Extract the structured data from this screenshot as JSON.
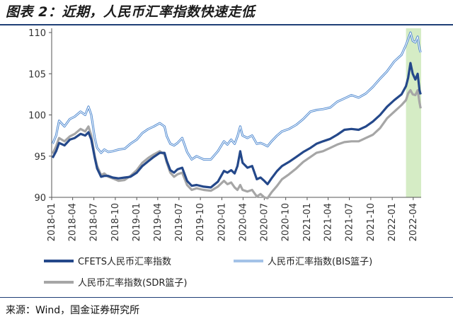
{
  "title": "图表 2：近期，人民币汇率指数快速走低",
  "source": "来源：Wind，国金证券研究所",
  "colors": {
    "cfets": "#24488a",
    "bis": "#7faee0",
    "sdr": "#a6a6a6",
    "highlight": "#d5ecc5",
    "axis": "#555555"
  },
  "chart_data": {
    "type": "line",
    "title": "",
    "xlabel": "",
    "ylabel": "",
    "ylim": [
      90,
      110
    ],
    "yticks": [
      90,
      95,
      100,
      105,
      110
    ],
    "x_range": [
      "2018-01-01",
      "2022-05-05"
    ],
    "xticks": [
      "2018-01",
      "2018-04",
      "2018-07",
      "2018-10",
      "2019-01",
      "2019-04",
      "2019-07",
      "2019-10",
      "2020-01",
      "2020-04",
      "2020-07",
      "2020-10",
      "2021-01",
      "2021-04",
      "2021-07",
      "2021-10",
      "2022-01",
      "2022-04"
    ],
    "highlight_range": [
      "2022-03-01",
      "2022-05-05"
    ],
    "legend_position": "bottom",
    "series": [
      {
        "name": "CFETS人民币汇率指数",
        "key": "cfets",
        "points": [
          [
            "2018-01-05",
            94.8
          ],
          [
            "2018-01-20",
            95.6
          ],
          [
            "2018-02-02",
            96.6
          ],
          [
            "2018-02-25",
            96.3
          ],
          [
            "2018-03-20",
            97.0
          ],
          [
            "2018-04-10",
            97.2
          ],
          [
            "2018-05-05",
            97.7
          ],
          [
            "2018-05-25",
            97.5
          ],
          [
            "2018-06-08",
            97.9
          ],
          [
            "2018-06-20",
            97.0
          ],
          [
            "2018-07-05",
            94.8
          ],
          [
            "2018-07-15",
            93.5
          ],
          [
            "2018-08-01",
            92.5
          ],
          [
            "2018-08-15",
            92.6
          ],
          [
            "2018-09-01",
            92.6
          ],
          [
            "2018-09-20",
            92.4
          ],
          [
            "2018-10-15",
            92.3
          ],
          [
            "2018-11-10",
            92.4
          ],
          [
            "2018-12-05",
            92.5
          ],
          [
            "2019-01-01",
            93.0
          ],
          [
            "2019-01-25",
            93.8
          ],
          [
            "2019-02-20",
            94.4
          ],
          [
            "2019-03-15",
            94.9
          ],
          [
            "2019-04-10",
            95.4
          ],
          [
            "2019-04-30",
            95.4
          ],
          [
            "2019-05-10",
            94.4
          ],
          [
            "2019-05-25",
            93.3
          ],
          [
            "2019-06-10",
            93.0
          ],
          [
            "2019-06-25",
            93.4
          ],
          [
            "2019-07-15",
            93.6
          ],
          [
            "2019-08-05",
            92.0
          ],
          [
            "2019-08-25",
            91.4
          ],
          [
            "2019-09-15",
            91.5
          ],
          [
            "2019-10-15",
            91.3
          ],
          [
            "2019-11-15",
            91.2
          ],
          [
            "2019-12-15",
            91.9
          ],
          [
            "2020-01-10",
            93.2
          ],
          [
            "2020-01-25",
            93.0
          ],
          [
            "2020-02-10",
            93.3
          ],
          [
            "2020-02-25",
            92.9
          ],
          [
            "2020-03-08",
            93.8
          ],
          [
            "2020-03-20",
            95.6
          ],
          [
            "2020-03-30",
            94.2
          ],
          [
            "2020-04-20",
            93.6
          ],
          [
            "2020-05-10",
            93.8
          ],
          [
            "2020-05-30",
            92.2
          ],
          [
            "2020-06-15",
            92.4
          ],
          [
            "2020-07-01",
            92.0
          ],
          [
            "2020-07-15",
            91.6
          ],
          [
            "2020-08-01",
            92.3
          ],
          [
            "2020-08-25",
            93.2
          ],
          [
            "2020-09-15",
            93.8
          ],
          [
            "2020-10-15",
            94.3
          ],
          [
            "2020-11-15",
            94.9
          ],
          [
            "2020-12-15",
            95.5
          ],
          [
            "2021-01-15",
            96.0
          ],
          [
            "2021-02-10",
            96.5
          ],
          [
            "2021-03-10",
            96.8
          ],
          [
            "2021-04-10",
            97.1
          ],
          [
            "2021-05-10",
            97.6
          ],
          [
            "2021-06-10",
            98.2
          ],
          [
            "2021-07-10",
            98.3
          ],
          [
            "2021-08-10",
            98.2
          ],
          [
            "2021-09-10",
            98.6
          ],
          [
            "2021-10-10",
            99.2
          ],
          [
            "2021-11-10",
            100.0
          ],
          [
            "2021-12-10",
            101.0
          ],
          [
            "2022-01-10",
            101.8
          ],
          [
            "2022-02-10",
            102.5
          ],
          [
            "2022-03-01",
            103.5
          ],
          [
            "2022-03-10",
            104.5
          ],
          [
            "2022-03-20",
            106.3
          ],
          [
            "2022-03-30",
            105.0
          ],
          [
            "2022-04-10",
            104.3
          ],
          [
            "2022-04-20",
            105.0
          ],
          [
            "2022-04-28",
            103.0
          ],
          [
            "2022-05-03",
            102.5
          ]
        ]
      },
      {
        "name": "人民币汇率指数(BIS篮子)",
        "key": "bis",
        "points": [
          [
            "2018-01-05",
            96.5
          ],
          [
            "2018-01-20",
            97.5
          ],
          [
            "2018-02-02",
            99.3
          ],
          [
            "2018-02-25",
            98.6
          ],
          [
            "2018-03-20",
            99.5
          ],
          [
            "2018-04-10",
            99.8
          ],
          [
            "2018-05-05",
            100.4
          ],
          [
            "2018-05-25",
            100.0
          ],
          [
            "2018-06-08",
            101.0
          ],
          [
            "2018-06-20",
            100.0
          ],
          [
            "2018-07-05",
            97.2
          ],
          [
            "2018-07-15",
            96.0
          ],
          [
            "2018-08-01",
            95.4
          ],
          [
            "2018-08-15",
            95.8
          ],
          [
            "2018-09-01",
            95.5
          ],
          [
            "2018-09-20",
            95.6
          ],
          [
            "2018-10-15",
            95.8
          ],
          [
            "2018-11-10",
            95.9
          ],
          [
            "2018-12-05",
            96.5
          ],
          [
            "2019-01-01",
            97.0
          ],
          [
            "2019-01-25",
            97.8
          ],
          [
            "2019-02-20",
            98.3
          ],
          [
            "2019-03-15",
            98.6
          ],
          [
            "2019-04-10",
            99.0
          ],
          [
            "2019-04-30",
            98.6
          ],
          [
            "2019-05-10",
            97.4
          ],
          [
            "2019-05-25",
            96.5
          ],
          [
            "2019-06-10",
            96.3
          ],
          [
            "2019-06-25",
            96.6
          ],
          [
            "2019-07-15",
            97.2
          ],
          [
            "2019-08-05",
            95.5
          ],
          [
            "2019-08-25",
            94.6
          ],
          [
            "2019-09-15",
            95.0
          ],
          [
            "2019-10-15",
            94.6
          ],
          [
            "2019-11-15",
            94.6
          ],
          [
            "2019-12-15",
            95.6
          ],
          [
            "2020-01-10",
            96.8
          ],
          [
            "2020-01-25",
            96.4
          ],
          [
            "2020-02-10",
            97.0
          ],
          [
            "2020-02-25",
            96.5
          ],
          [
            "2020-03-08",
            97.4
          ],
          [
            "2020-03-20",
            98.6
          ],
          [
            "2020-03-30",
            97.5
          ],
          [
            "2020-04-20",
            97.2
          ],
          [
            "2020-05-10",
            97.5
          ],
          [
            "2020-05-30",
            96.5
          ],
          [
            "2020-06-15",
            96.6
          ],
          [
            "2020-07-01",
            96.4
          ],
          [
            "2020-07-15",
            96.2
          ],
          [
            "2020-08-01",
            96.8
          ],
          [
            "2020-08-25",
            97.5
          ],
          [
            "2020-09-15",
            98.0
          ],
          [
            "2020-10-15",
            98.3
          ],
          [
            "2020-11-15",
            98.8
          ],
          [
            "2020-12-15",
            99.5
          ],
          [
            "2021-01-15",
            100.4
          ],
          [
            "2021-02-10",
            100.6
          ],
          [
            "2021-03-10",
            100.7
          ],
          [
            "2021-04-10",
            100.9
          ],
          [
            "2021-05-10",
            101.6
          ],
          [
            "2021-06-10",
            102.0
          ],
          [
            "2021-07-10",
            102.4
          ],
          [
            "2021-08-10",
            102.1
          ],
          [
            "2021-09-10",
            102.6
          ],
          [
            "2021-10-10",
            103.4
          ],
          [
            "2021-11-10",
            104.4
          ],
          [
            "2021-12-10",
            105.3
          ],
          [
            "2022-01-10",
            106.5
          ],
          [
            "2022-02-10",
            107.3
          ],
          [
            "2022-03-01",
            108.5
          ],
          [
            "2022-03-10",
            109.2
          ],
          [
            "2022-03-20",
            110.0
          ],
          [
            "2022-03-30",
            109.0
          ],
          [
            "2022-04-10",
            108.8
          ],
          [
            "2022-04-20",
            109.5
          ],
          [
            "2022-04-28",
            108.0
          ],
          [
            "2022-05-03",
            107.6
          ]
        ]
      },
      {
        "name": "人民币汇率指数(SDR篮子)",
        "key": "sdr",
        "points": [
          [
            "2018-01-05",
            95.3
          ],
          [
            "2018-01-20",
            96.2
          ],
          [
            "2018-02-02",
            97.2
          ],
          [
            "2018-02-25",
            96.8
          ],
          [
            "2018-03-20",
            97.4
          ],
          [
            "2018-04-10",
            97.7
          ],
          [
            "2018-05-05",
            98.3
          ],
          [
            "2018-05-25",
            98.0
          ],
          [
            "2018-06-08",
            98.6
          ],
          [
            "2018-06-20",
            97.5
          ],
          [
            "2018-07-05",
            95.0
          ],
          [
            "2018-07-15",
            93.8
          ],
          [
            "2018-08-01",
            92.7
          ],
          [
            "2018-08-15",
            92.9
          ],
          [
            "2018-09-01",
            92.5
          ],
          [
            "2018-09-20",
            92.3
          ],
          [
            "2018-10-15",
            92.0
          ],
          [
            "2018-11-10",
            92.1
          ],
          [
            "2018-12-05",
            92.6
          ],
          [
            "2019-01-01",
            93.3
          ],
          [
            "2019-01-25",
            94.2
          ],
          [
            "2019-02-20",
            94.8
          ],
          [
            "2019-03-15",
            95.2
          ],
          [
            "2019-04-10",
            95.6
          ],
          [
            "2019-04-30",
            95.2
          ],
          [
            "2019-05-10",
            94.2
          ],
          [
            "2019-05-25",
            93.0
          ],
          [
            "2019-06-10",
            92.5
          ],
          [
            "2019-06-25",
            92.8
          ],
          [
            "2019-07-15",
            93.0
          ],
          [
            "2019-08-05",
            91.5
          ],
          [
            "2019-08-25",
            90.9
          ],
          [
            "2019-09-15",
            91.1
          ],
          [
            "2019-10-15",
            90.9
          ],
          [
            "2019-11-15",
            90.8
          ],
          [
            "2019-12-15",
            91.3
          ],
          [
            "2020-01-10",
            92.0
          ],
          [
            "2020-01-25",
            91.6
          ],
          [
            "2020-02-10",
            91.8
          ],
          [
            "2020-02-25",
            91.2
          ],
          [
            "2020-03-08",
            90.9
          ],
          [
            "2020-03-20",
            91.5
          ],
          [
            "2020-03-30",
            90.9
          ],
          [
            "2020-04-20",
            90.7
          ],
          [
            "2020-05-10",
            90.9
          ],
          [
            "2020-05-30",
            90.1
          ],
          [
            "2020-06-15",
            90.4
          ],
          [
            "2020-07-01",
            90.0
          ],
          [
            "2020-07-15",
            89.9
          ],
          [
            "2020-08-01",
            90.6
          ],
          [
            "2020-08-25",
            91.4
          ],
          [
            "2020-09-15",
            92.2
          ],
          [
            "2020-10-15",
            92.8
          ],
          [
            "2020-11-15",
            93.5
          ],
          [
            "2020-12-15",
            94.3
          ],
          [
            "2021-01-15",
            94.9
          ],
          [
            "2021-02-10",
            95.4
          ],
          [
            "2021-03-10",
            95.6
          ],
          [
            "2021-04-10",
            96.0
          ],
          [
            "2021-05-10",
            96.4
          ],
          [
            "2021-06-10",
            96.7
          ],
          [
            "2021-07-10",
            96.8
          ],
          [
            "2021-08-10",
            96.8
          ],
          [
            "2021-09-10",
            97.2
          ],
          [
            "2021-10-10",
            97.6
          ],
          [
            "2021-11-10",
            98.4
          ],
          [
            "2021-12-10",
            99.6
          ],
          [
            "2022-01-10",
            100.4
          ],
          [
            "2022-02-10",
            101.2
          ],
          [
            "2022-03-01",
            101.8
          ],
          [
            "2022-03-10",
            102.6
          ],
          [
            "2022-03-20",
            103.0
          ],
          [
            "2022-03-30",
            102.5
          ],
          [
            "2022-04-10",
            102.4
          ],
          [
            "2022-04-20",
            103.0
          ],
          [
            "2022-04-28",
            101.5
          ],
          [
            "2022-05-03",
            100.8
          ]
        ]
      }
    ]
  }
}
